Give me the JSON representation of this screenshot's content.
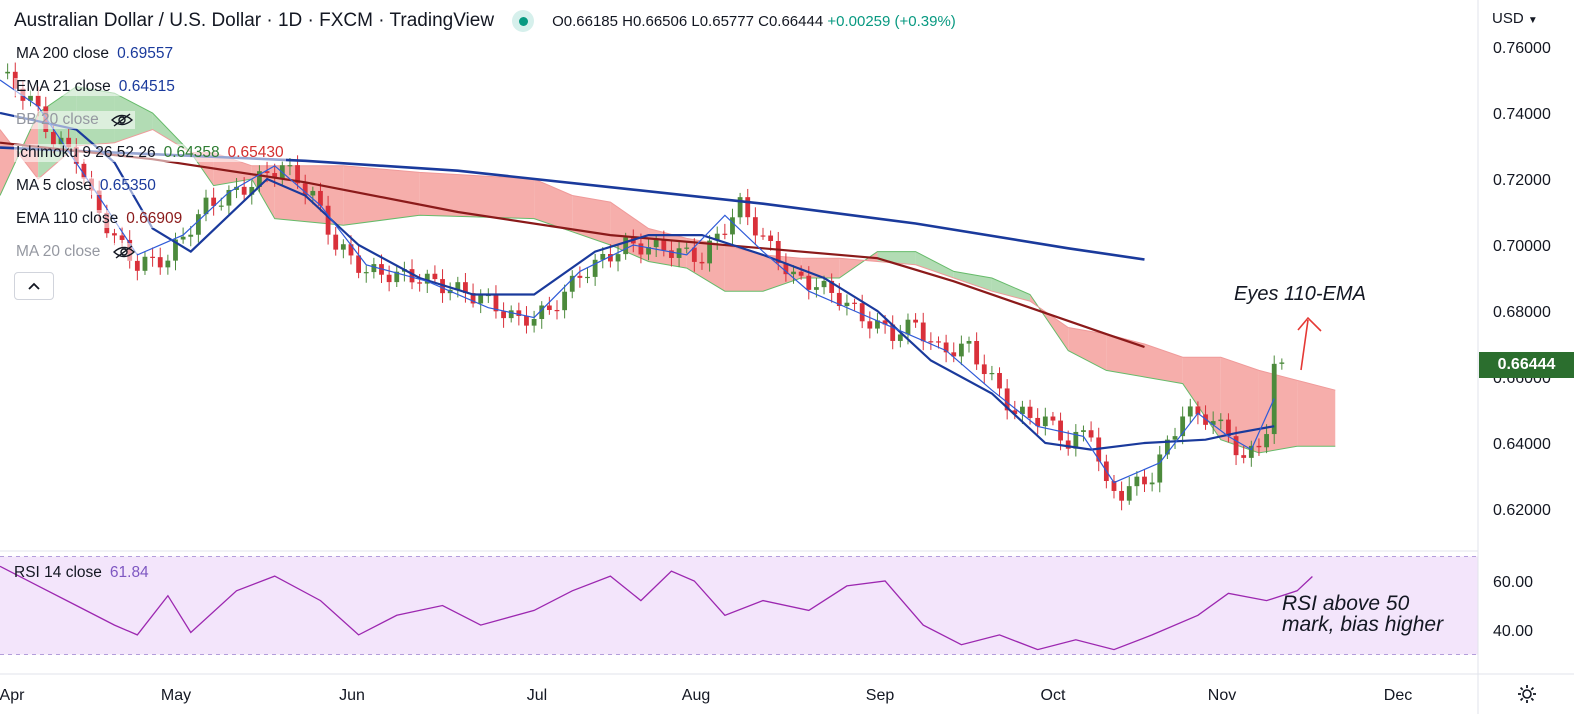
{
  "header": {
    "symbol": "Australian Dollar / U.S. Dollar · 1D · FXCM · TradingView",
    "open": "O0.66185",
    "high": "H0.66506",
    "low": "L0.65777",
    "close": "C0.66444",
    "change": "+0.00259 (+0.39%)"
  },
  "legend": [
    {
      "label": "MA 200 close",
      "value": "0.69557",
      "color": "#1a3a9c"
    },
    {
      "label": "EMA 21 close",
      "value": "0.64515",
      "color": "#1a3a9c"
    },
    {
      "label": "BB 20 close",
      "value": "",
      "color": "#9598a1"
    },
    {
      "label": "Ichimoku 9 26 52 26",
      "value": "0.64358",
      "value2": "0.65430",
      "color": "#2e7d32",
      "color2": "#d32f2f"
    },
    {
      "label": "MA 5 close",
      "value": "0.65350",
      "color": "#1a3a9c"
    },
    {
      "label": "EMA 110 close",
      "value": "0.66909",
      "color": "#8b1a1a"
    },
    {
      "label": "MA 20 close",
      "value": "",
      "color": "#9598a1"
    }
  ],
  "rsi_legend": {
    "label": "RSI 14 close",
    "value": "61.84"
  },
  "annotations": {
    "ema": "Eyes 110-EMA",
    "rsi_line1": "RSI above 50",
    "rsi_line2": "mark, bias higher"
  },
  "axis": {
    "currency": "USD",
    "last_price": "0.66444"
  },
  "colors": {
    "up": "#4c8a3c",
    "down": "#d9303a",
    "cloud_bull": "#a5d6a7",
    "cloud_bear": "#f4a09c",
    "ma200": "#1a3a9c",
    "ema110": "#8b1a1a",
    "rsi": "#9c27b0"
  },
  "chart_data": {
    "type": "candlestick",
    "title": "Australian Dollar / U.S. Dollar · 1D · FXCM · TradingView",
    "price_axis": {
      "ticks": [
        "0.76000",
        "0.74000",
        "0.72000",
        "0.70000",
        "0.68000",
        "0.66000",
        "0.64000",
        "0.62000"
      ],
      "ylim": [
        0.612,
        0.767
      ]
    },
    "rsi_axis": {
      "ticks": [
        "60.00",
        "40.00"
      ],
      "ylim": [
        26,
        74
      ],
      "band": [
        30,
        70
      ]
    },
    "time_axis": {
      "labels": [
        "Apr",
        "May",
        "Jun",
        "Jul",
        "Aug",
        "Sep",
        "Oct",
        "Nov",
        "Dec"
      ]
    },
    "candle_path": [
      [
        0,
        0.752
      ],
      [
        4,
        0.744
      ],
      [
        7,
        0.732
      ],
      [
        10,
        0.727
      ],
      [
        12,
        0.714
      ],
      [
        15,
        0.702
      ],
      [
        18,
        0.694
      ],
      [
        22,
        0.696
      ],
      [
        27,
        0.712
      ],
      [
        31,
        0.716
      ],
      [
        37,
        0.724
      ],
      [
        41,
        0.715
      ],
      [
        44,
        0.7
      ],
      [
        48,
        0.692
      ],
      [
        55,
        0.69
      ],
      [
        63,
        0.684
      ],
      [
        68,
        0.677
      ],
      [
        72,
        0.68
      ],
      [
        76,
        0.691
      ],
      [
        82,
        0.7
      ],
      [
        87,
        0.699
      ],
      [
        92,
        0.696
      ],
      [
        97,
        0.712
      ],
      [
        100,
        0.702
      ],
      [
        104,
        0.69
      ],
      [
        107,
        0.688
      ],
      [
        110,
        0.684
      ],
      [
        113,
        0.678
      ],
      [
        117,
        0.673
      ],
      [
        120,
        0.676
      ],
      [
        123,
        0.668
      ],
      [
        127,
        0.669
      ],
      [
        130,
        0.659
      ],
      [
        133,
        0.649
      ],
      [
        137,
        0.647
      ],
      [
        140,
        0.64
      ],
      [
        143,
        0.644
      ],
      [
        145,
        0.626
      ],
      [
        147,
        0.625
      ],
      [
        151,
        0.63
      ],
      [
        155,
        0.649
      ],
      [
        158,
        0.648
      ],
      [
        161,
        0.643
      ],
      [
        163,
        0.634
      ],
      [
        166,
        0.644
      ],
      [
        167,
        0.6617
      ],
      [
        168,
        0.6644
      ]
    ],
    "ichimoku_cloud": [
      [
        0,
        0.715,
        0.735
      ],
      [
        5,
        0.74,
        0.72
      ],
      [
        10,
        0.748,
        0.73
      ],
      [
        15,
        0.746,
        0.731
      ],
      [
        20,
        0.74,
        0.735
      ],
      [
        25,
        0.728,
        0.728
      ],
      [
        28,
        0.718,
        0.728
      ],
      [
        33,
        0.72,
        0.724
      ],
      [
        36,
        0.708,
        0.724
      ],
      [
        45,
        0.706,
        0.724
      ],
      [
        55,
        0.709,
        0.722
      ],
      [
        70,
        0.708,
        0.72
      ],
      [
        75,
        0.704,
        0.715
      ],
      [
        80,
        0.7,
        0.713
      ],
      [
        85,
        0.695,
        0.705
      ],
      [
        90,
        0.693,
        0.702
      ],
      [
        95,
        0.686,
        0.7
      ],
      [
        100,
        0.686,
        0.697
      ],
      [
        105,
        0.69,
        0.696
      ],
      [
        110,
        0.69,
        0.696
      ],
      [
        115,
        0.698,
        0.695
      ],
      [
        120,
        0.698,
        0.694
      ],
      [
        125,
        0.692,
        0.69
      ],
      [
        130,
        0.69,
        0.686
      ],
      [
        135,
        0.685,
        0.683
      ],
      [
        140,
        0.668,
        0.675
      ],
      [
        145,
        0.662,
        0.673
      ],
      [
        150,
        0.66,
        0.67
      ],
      [
        155,
        0.658,
        0.666
      ],
      [
        160,
        0.641,
        0.666
      ],
      [
        165,
        0.637,
        0.662
      ],
      [
        170,
        0.639,
        0.659
      ],
      [
        175,
        0.639,
        0.656
      ]
    ],
    "ma200": [
      [
        0,
        0.7295
      ],
      [
        40,
        0.7255
      ],
      [
        60,
        0.7225
      ],
      [
        80,
        0.7175
      ],
      [
        100,
        0.7125
      ],
      [
        120,
        0.7065
      ],
      [
        140,
        0.699
      ],
      [
        150,
        0.6956
      ]
    ],
    "ema110": [
      [
        0,
        0.731
      ],
      [
        20,
        0.726
      ],
      [
        40,
        0.719
      ],
      [
        60,
        0.71
      ],
      [
        80,
        0.703
      ],
      [
        100,
        0.699
      ],
      [
        115,
        0.696
      ],
      [
        125,
        0.689
      ],
      [
        135,
        0.681
      ],
      [
        145,
        0.673
      ],
      [
        150,
        0.6691
      ]
    ],
    "ema21": [
      [
        0,
        0.74
      ],
      [
        10,
        0.735
      ],
      [
        15,
        0.725
      ],
      [
        20,
        0.705
      ],
      [
        25,
        0.698
      ],
      [
        35,
        0.72
      ],
      [
        40,
        0.715
      ],
      [
        47,
        0.7
      ],
      [
        55,
        0.69
      ],
      [
        62,
        0.685
      ],
      [
        70,
        0.685
      ],
      [
        78,
        0.698
      ],
      [
        85,
        0.703
      ],
      [
        92,
        0.703
      ],
      [
        100,
        0.697
      ],
      [
        108,
        0.69
      ],
      [
        115,
        0.68
      ],
      [
        122,
        0.665
      ],
      [
        130,
        0.655
      ],
      [
        137,
        0.64
      ],
      [
        143,
        0.638
      ],
      [
        150,
        0.64
      ],
      [
        158,
        0.641
      ],
      [
        162,
        0.643
      ],
      [
        167,
        0.6451
      ]
    ],
    "ma5": [
      [
        0,
        0.75
      ],
      [
        5,
        0.742
      ],
      [
        12,
        0.718
      ],
      [
        18,
        0.697
      ],
      [
        24,
        0.703
      ],
      [
        30,
        0.716
      ],
      [
        36,
        0.724
      ],
      [
        42,
        0.712
      ],
      [
        48,
        0.694
      ],
      [
        56,
        0.689
      ],
      [
        64,
        0.681
      ],
      [
        70,
        0.678
      ],
      [
        76,
        0.692
      ],
      [
        83,
        0.7
      ],
      [
        90,
        0.697
      ],
      [
        95,
        0.709
      ],
      [
        100,
        0.698
      ],
      [
        106,
        0.686
      ],
      [
        112,
        0.68
      ],
      [
        118,
        0.674
      ],
      [
        124,
        0.668
      ],
      [
        130,
        0.656
      ],
      [
        136,
        0.645
      ],
      [
        142,
        0.642
      ],
      [
        146,
        0.628
      ],
      [
        152,
        0.634
      ],
      [
        157,
        0.649
      ],
      [
        161,
        0.642
      ],
      [
        164,
        0.638
      ],
      [
        167,
        0.6535
      ]
    ],
    "rsi": [
      [
        0,
        66
      ],
      [
        5,
        58
      ],
      [
        10,
        50
      ],
      [
        15,
        42
      ],
      [
        18,
        38
      ],
      [
        22,
        54
      ],
      [
        25,
        39
      ],
      [
        31,
        56
      ],
      [
        36,
        62
      ],
      [
        42,
        52
      ],
      [
        47,
        38
      ],
      [
        52,
        46
      ],
      [
        58,
        50
      ],
      [
        63,
        42
      ],
      [
        70,
        48
      ],
      [
        75,
        56
      ],
      [
        80,
        62
      ],
      [
        84,
        52
      ],
      [
        88,
        64
      ],
      [
        91,
        60
      ],
      [
        95,
        46
      ],
      [
        100,
        52
      ],
      [
        106,
        48
      ],
      [
        111,
        58
      ],
      [
        116,
        60
      ],
      [
        121,
        42
      ],
      [
        126,
        34
      ],
      [
        131,
        38
      ],
      [
        136,
        32
      ],
      [
        141,
        36
      ],
      [
        146,
        32
      ],
      [
        151,
        38
      ],
      [
        157,
        46
      ],
      [
        161,
        55
      ],
      [
        166,
        52
      ],
      [
        170,
        56
      ],
      [
        172,
        61.84
      ]
    ]
  }
}
